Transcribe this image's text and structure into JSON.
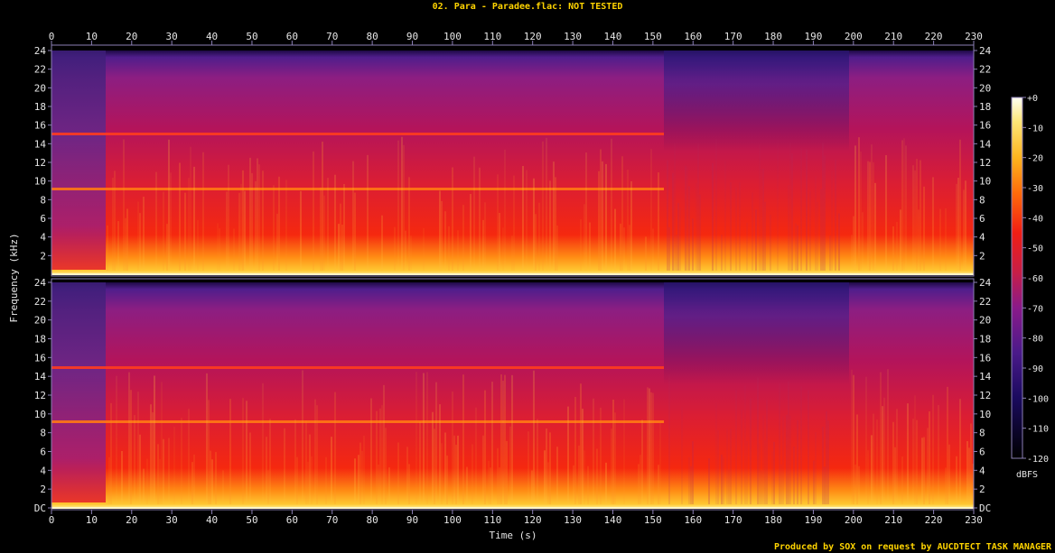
{
  "title": "02. Para - Paradee.flac: NOT TESTED",
  "footer": "Produced by SOX on request by AUCDTECT TASK MANAGER",
  "colors": {
    "background": "#000000",
    "text": "#e6e6e6",
    "title": "#ffd400",
    "axis": "#8c7fb5"
  },
  "chart_data": {
    "type": "heatmap",
    "subtype": "spectrogram",
    "xlabel": "Time (s)",
    "ylabel": "Frequency (kHz)",
    "xlim": [
      0,
      230
    ],
    "x_ticks": [
      0,
      10,
      20,
      30,
      40,
      50,
      60,
      70,
      80,
      90,
      100,
      110,
      120,
      130,
      140,
      150,
      160,
      170,
      180,
      190,
      200,
      210,
      220,
      230
    ],
    "channels": [
      {
        "ylim": [
          0,
          24
        ],
        "y_ticks": [
          "2",
          "4",
          "6",
          "8",
          "10",
          "12",
          "14",
          "16",
          "18",
          "20",
          "22",
          "24"
        ]
      },
      {
        "ylim": [
          0,
          24
        ],
        "y_ticks": [
          "DC",
          "2",
          "4",
          "6",
          "8",
          "10",
          "12",
          "14",
          "16",
          "18",
          "20",
          "22",
          "24"
        ]
      }
    ],
    "colorbar": {
      "label": "dBFS",
      "range": [
        -120,
        0
      ],
      "ticks": [
        "+0",
        "-10",
        "-20",
        "-30",
        "-40",
        "-50",
        "-60",
        "-70",
        "-80",
        "-90",
        "-100",
        "-110",
        "-120"
      ],
      "stops": [
        {
          "db": -120,
          "color": "#000000"
        },
        {
          "db": -100,
          "color": "#1a0a5e"
        },
        {
          "db": -85,
          "color": "#4a1a8a"
        },
        {
          "db": -70,
          "color": "#8a1a8a"
        },
        {
          "db": -58,
          "color": "#c81e46"
        },
        {
          "db": -45,
          "color": "#f01e14"
        },
        {
          "db": -32,
          "color": "#ff6a0a"
        },
        {
          "db": -20,
          "color": "#ffb41e"
        },
        {
          "db": -8,
          "color": "#ffe678"
        },
        {
          "db": 0,
          "color": "#fffff5"
        }
      ]
    }
  }
}
